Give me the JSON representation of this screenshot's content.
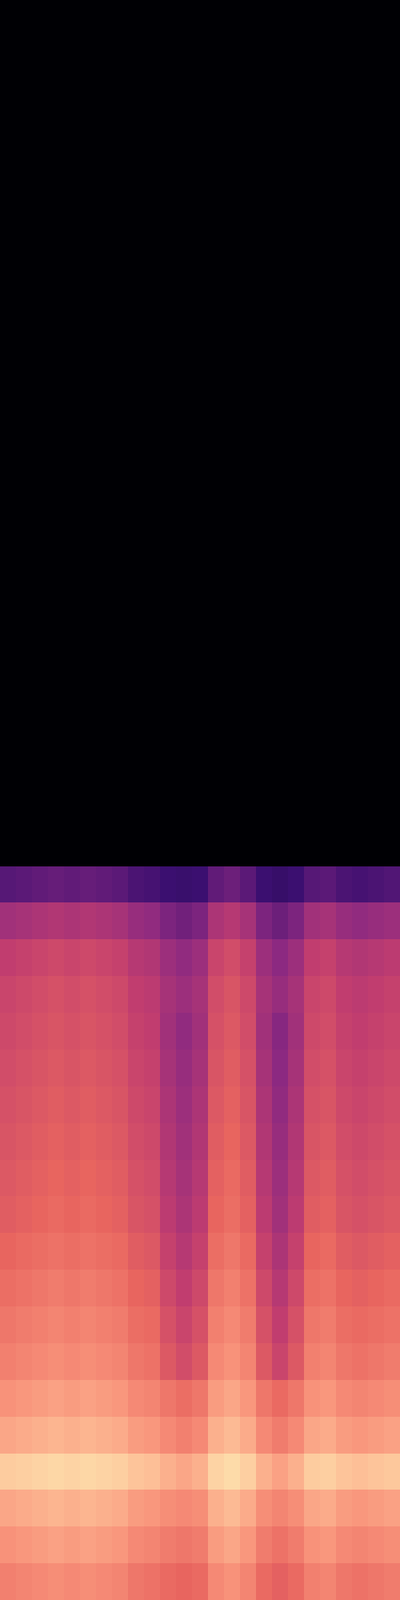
{
  "chart_data": {
    "type": "heatmap",
    "tick_labels": false,
    "grid": false,
    "x": [
      0,
      1,
      2,
      3,
      4,
      5,
      6,
      7,
      8,
      9,
      10,
      11,
      12,
      13,
      14,
      15,
      16,
      17,
      18,
      19,
      20,
      21,
      22,
      23,
      24,
      25
    ],
    "y": [
      0,
      1,
      2,
      3,
      4,
      5,
      6,
      7,
      8,
      9,
      10,
      11,
      12,
      13,
      14,
      15,
      16,
      17,
      18,
      19,
      20,
      43.6
    ],
    "xlim": [
      0,
      25
    ],
    "ylim": [
      0,
      43.6
    ],
    "zlim": [
      0,
      100
    ],
    "z": [
      [
        71,
        72,
        73,
        74,
        73,
        74,
        73,
        72,
        69,
        68,
        66,
        65,
        66,
        73,
        75,
        72,
        66,
        64,
        66,
        71,
        72,
        69,
        68,
        69,
        70
      ],
      [
        75,
        76,
        77,
        78,
        77,
        78,
        77,
        76,
        73,
        72,
        70,
        69,
        70,
        77,
        79,
        76,
        70,
        68,
        70,
        75,
        76,
        73,
        72,
        73,
        74
      ],
      [
        79,
        80,
        81,
        82,
        81,
        82,
        81,
        80,
        77,
        76,
        74,
        73,
        74,
        81,
        83,
        80,
        74,
        72,
        74,
        79,
        80,
        77,
        76,
        77,
        78
      ],
      [
        87,
        88,
        89,
        90,
        89,
        90,
        89,
        88,
        85,
        84,
        81,
        79,
        81,
        89,
        91,
        88,
        81,
        78,
        81,
        87,
        88,
        85,
        84,
        85,
        86
      ],
      [
        79,
        80,
        81,
        82,
        81,
        82,
        81,
        80,
        77,
        76,
        73,
        71,
        73,
        81,
        83,
        80,
        73,
        70,
        73,
        79,
        80,
        77,
        76,
        77,
        78
      ],
      [
        75,
        76,
        77,
        78,
        77,
        78,
        77,
        76,
        73,
        72,
        69,
        67,
        69,
        77,
        79,
        76,
        69,
        66,
        69,
        75,
        76,
        73,
        72,
        73,
        74
      ],
      [
        71,
        72,
        73,
        74,
        73,
        74,
        73,
        72,
        69,
        68,
        62,
        59,
        62,
        73,
        75,
        72,
        62,
        57,
        62,
        71,
        72,
        69,
        68,
        69,
        70
      ],
      [
        69,
        70,
        71,
        72,
        71,
        72,
        71,
        70,
        67,
        66,
        60,
        57,
        60,
        71,
        73,
        70,
        60,
        55,
        60,
        69,
        70,
        67,
        66,
        67,
        68
      ],
      [
        67,
        68,
        69,
        70,
        69,
        70,
        69,
        68,
        65,
        64,
        58,
        55,
        58,
        69,
        71,
        68,
        58,
        53,
        58,
        67,
        68,
        65,
        64,
        65,
        66
      ],
      [
        65,
        66,
        67,
        68,
        67,
        68,
        67,
        66,
        63,
        62,
        56,
        53,
        56,
        67,
        69,
        66,
        56,
        51,
        56,
        65,
        66,
        63,
        62,
        63,
        64
      ],
      [
        63,
        64,
        65,
        66,
        65,
        66,
        65,
        64,
        61,
        60,
        54,
        51,
        54,
        65,
        67,
        64,
        54,
        49,
        54,
        63,
        64,
        61,
        60,
        61,
        62
      ],
      [
        62,
        63,
        64,
        65,
        64,
        65,
        64,
        63,
        60,
        59,
        53,
        50,
        53,
        64,
        66,
        63,
        53,
        48,
        53,
        62,
        63,
        60,
        59,
        60,
        61
      ],
      [
        61,
        62,
        63,
        64,
        63,
        64,
        63,
        62,
        59,
        58,
        52,
        49,
        52,
        63,
        65,
        62,
        52,
        47,
        52,
        61,
        62,
        59,
        58,
        59,
        60
      ],
      [
        60,
        61,
        62,
        63,
        62,
        63,
        62,
        61,
        58,
        57,
        51,
        48,
        51,
        62,
        64,
        61,
        51,
        46,
        51,
        60,
        61,
        58,
        57,
        58,
        59
      ],
      [
        59,
        60,
        61,
        62,
        61,
        62,
        61,
        60,
        57,
        56,
        50,
        47,
        50,
        61,
        63,
        60,
        50,
        45,
        50,
        59,
        60,
        57,
        56,
        57,
        58
      ],
      [
        58,
        59,
        60,
        61,
        60,
        61,
        60,
        59,
        56,
        55,
        49,
        46,
        49,
        60,
        62,
        59,
        49,
        44,
        49,
        58,
        59,
        56,
        55,
        56,
        57
      ],
      [
        57,
        58,
        59,
        60,
        59,
        60,
        59,
        58,
        55,
        54,
        50,
        48,
        50,
        59,
        61,
        58,
        50,
        47,
        50,
        57,
        58,
        55,
        54,
        55,
        56
      ],
      [
        55,
        56,
        57,
        58,
        57,
        58,
        57,
        56,
        53,
        52,
        48,
        46,
        48,
        57,
        59,
        56,
        48,
        45,
        48,
        55,
        56,
        53,
        52,
        53,
        54
      ],
      [
        49,
        50,
        51,
        52,
        51,
        52,
        51,
        50,
        47,
        46,
        42,
        40,
        42,
        51,
        53,
        50,
        42,
        39,
        42,
        49,
        50,
        47,
        46,
        47,
        48
      ],
      [
        35,
        36,
        37,
        38,
        37,
        38,
        37,
        36,
        33,
        32,
        30,
        29,
        30,
        37,
        39,
        36,
        30,
        28,
        30,
        35,
        36,
        33,
        32,
        33,
        34
      ],
      [
        0,
        0,
        0,
        0,
        0,
        0,
        0,
        0,
        0,
        0,
        0,
        0,
        0,
        0,
        0,
        0,
        0,
        0,
        0,
        0,
        0,
        0,
        0,
        0,
        0
      ]
    ]
  }
}
